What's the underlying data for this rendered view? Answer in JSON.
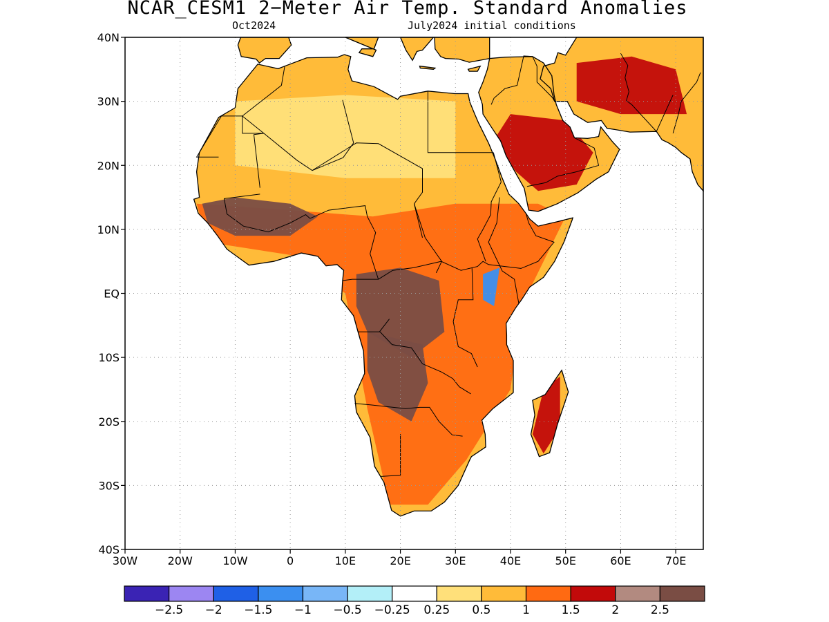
{
  "title": "NCAR_CESM1 2−Meter Air Temp. Standard Anomalies",
  "subtitle_left": "Oct2024",
  "subtitle_right": "July2024 initial conditions",
  "map": {
    "lon_range": [
      -30,
      75
    ],
    "lat_range": [
      -40,
      40
    ],
    "lat_ticks": [
      {
        "value": 40,
        "label": "40N"
      },
      {
        "value": 30,
        "label": "30N"
      },
      {
        "value": 20,
        "label": "20N"
      },
      {
        "value": 10,
        "label": "10N"
      },
      {
        "value": 0,
        "label": "EQ"
      },
      {
        "value": -10,
        "label": "10S"
      },
      {
        "value": -20,
        "label": "20S"
      },
      {
        "value": -30,
        "label": "30S"
      },
      {
        "value": -40,
        "label": "40S"
      }
    ],
    "lon_ticks": [
      {
        "value": -30,
        "label": "30W"
      },
      {
        "value": -20,
        "label": "20W"
      },
      {
        "value": -10,
        "label": "10W"
      },
      {
        "value": 0,
        "label": "0"
      },
      {
        "value": 10,
        "label": "10E"
      },
      {
        "value": 20,
        "label": "20E"
      },
      {
        "value": 30,
        "label": "30E"
      },
      {
        "value": 40,
        "label": "40E"
      },
      {
        "value": 50,
        "label": "50E"
      },
      {
        "value": 60,
        "label": "60E"
      },
      {
        "value": 70,
        "label": "70E"
      }
    ],
    "grid": "dotted"
  },
  "colorbar": {
    "colors": [
      "#3a23b4",
      "#9c86f2",
      "#1f60e6",
      "#3b8ff0",
      "#78b6f7",
      "#b3eff8",
      "#ffffff",
      "#ffe07a",
      "#ffbb39",
      "#ff6a12",
      "#c20a0a",
      "#b28a80",
      "#7a4d44"
    ],
    "labels": [
      "−2.5",
      "−2",
      "−1.5",
      "−1",
      "−0.5",
      "−0.25",
      "0.25",
      "0.5",
      "1",
      "1.5",
      "2",
      "2.5"
    ]
  },
  "anomaly_regions": [
    {
      "name": "north-africa-warm",
      "level": 0.5,
      "color": "#ffe07a",
      "polygon": [
        [
          -10,
          30
        ],
        [
          10,
          31
        ],
        [
          30,
          30
        ],
        [
          30,
          18
        ],
        [
          10,
          18
        ],
        [
          -10,
          20
        ]
      ]
    },
    {
      "name": "africa-moderate",
      "level": 1.5,
      "color": "#ff6a12",
      "polygon": [
        [
          -17,
          14
        ],
        [
          0,
          13
        ],
        [
          15,
          12
        ],
        [
          30,
          14
        ],
        [
          45,
          14
        ],
        [
          50,
          12
        ],
        [
          42,
          -2
        ],
        [
          40,
          -15
        ],
        [
          32,
          -26
        ],
        [
          25,
          -33
        ],
        [
          18,
          -33
        ],
        [
          14,
          -18
        ],
        [
          10,
          0
        ],
        [
          0,
          6
        ],
        [
          -15,
          8
        ]
      ]
    },
    {
      "name": "sahel-strong",
      "level": 2.5,
      "color": "#7a4d44",
      "polygon": [
        [
          -16,
          14
        ],
        [
          -10,
          15
        ],
        [
          0,
          14
        ],
        [
          5,
          12
        ],
        [
          0,
          9
        ],
        [
          -10,
          9
        ],
        [
          -15,
          11
        ]
      ]
    },
    {
      "name": "congo-strong",
      "level": 2.5,
      "color": "#7a4d44",
      "polygon": [
        [
          12,
          3
        ],
        [
          20,
          4
        ],
        [
          27,
          2
        ],
        [
          28,
          -6
        ],
        [
          22,
          -10
        ],
        [
          14,
          -6
        ],
        [
          12,
          -2
        ]
      ]
    },
    {
      "name": "angola-strong",
      "level": 2.5,
      "color": "#7a4d44",
      "polygon": [
        [
          14,
          -6
        ],
        [
          24,
          -8
        ],
        [
          25,
          -14
        ],
        [
          22,
          -20
        ],
        [
          16,
          -17
        ],
        [
          14,
          -12
        ]
      ]
    },
    {
      "name": "east-africa-cool",
      "level": -1.0,
      "color": "#3b8ff0",
      "polygon": [
        [
          35,
          3
        ],
        [
          38,
          4
        ],
        [
          37,
          -2
        ],
        [
          35,
          -1
        ]
      ]
    },
    {
      "name": "madagascar-warm",
      "level": 2.0,
      "color": "#c20a0a",
      "polygon": [
        [
          46,
          -15
        ],
        [
          49,
          -13
        ],
        [
          49,
          -21
        ],
        [
          46,
          -25
        ],
        [
          44,
          -22
        ]
      ]
    },
    {
      "name": "arabia-warm",
      "level": 2.0,
      "color": "#c20a0a",
      "polygon": [
        [
          40,
          28
        ],
        [
          50,
          27
        ],
        [
          55,
          22
        ],
        [
          52,
          17
        ],
        [
          45,
          16
        ],
        [
          41,
          19
        ],
        [
          37,
          24
        ]
      ]
    },
    {
      "name": "iran-warm",
      "level": 2.0,
      "color": "#c20a0a",
      "polygon": [
        [
          52,
          36
        ],
        [
          62,
          37
        ],
        [
          70,
          35
        ],
        [
          72,
          28
        ],
        [
          60,
          28
        ],
        [
          52,
          30
        ]
      ]
    }
  ]
}
